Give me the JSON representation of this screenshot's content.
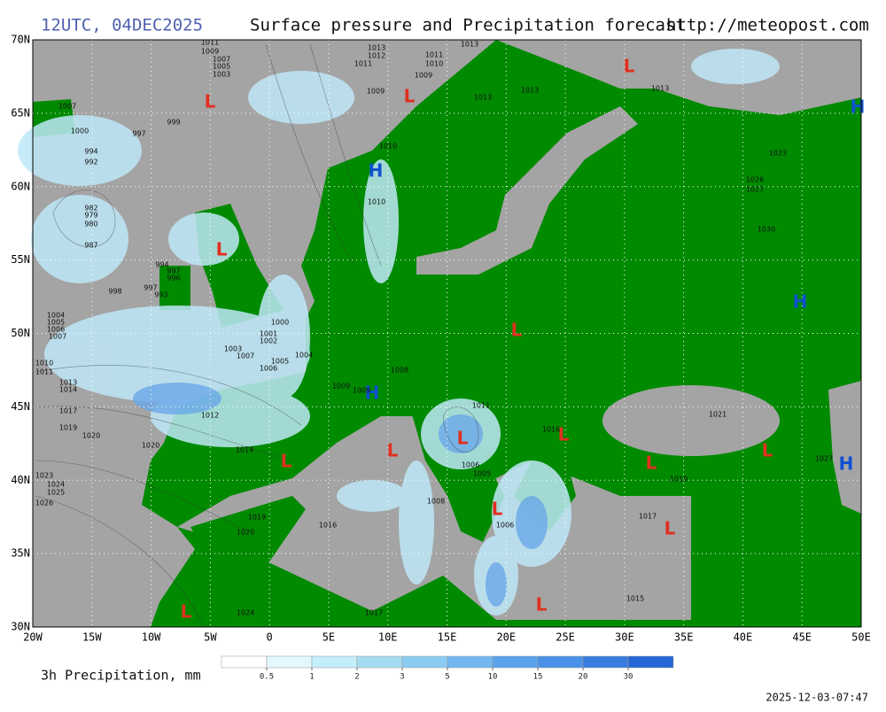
{
  "header": {
    "time": "12UTC, 04DEC2025",
    "title": "Surface pressure and Precipitation forecast",
    "url": "http://meteopost.com"
  },
  "map": {
    "lat_ticks": [
      {
        "value": 70,
        "label": "70N"
      },
      {
        "value": 65,
        "label": "65N"
      },
      {
        "value": 60,
        "label": "60N"
      },
      {
        "value": 55,
        "label": "55N"
      },
      {
        "value": 50,
        "label": "50N"
      },
      {
        "value": 45,
        "label": "45N"
      },
      {
        "value": 40,
        "label": "40N"
      },
      {
        "value": 35,
        "label": "35N"
      },
      {
        "value": 30,
        "label": "30N"
      }
    ],
    "lon_ticks": [
      {
        "value": -20,
        "label": "20W"
      },
      {
        "value": -15,
        "label": "15W"
      },
      {
        "value": -10,
        "label": "10W"
      },
      {
        "value": -5,
        "label": "5W"
      },
      0,
      {
        "value": 5,
        "label": "5E"
      },
      {
        "value": 10,
        "label": "10E"
      },
      {
        "value": 15,
        "label": "15E"
      },
      {
        "value": 20,
        "label": "20E"
      },
      {
        "value": 25,
        "label": "25E"
      },
      {
        "value": 30,
        "label": "30E"
      },
      {
        "value": 35,
        "label": "35E"
      },
      {
        "value": 40,
        "label": "40E"
      },
      {
        "value": 45,
        "label": "45E"
      },
      {
        "value": 50,
        "label": "50E"
      }
    ],
    "low_centers": [
      "L",
      "L",
      "L",
      "L",
      "L",
      "L",
      "L",
      "L",
      "L",
      "L",
      "L",
      "L",
      "L",
      "L",
      "L"
    ],
    "high_centers": [
      "H",
      "H",
      "H",
      "H",
      "H"
    ],
    "isobar_labels": [
      1011,
      1009,
      1007,
      1005,
      1003,
      1013,
      1012,
      1011,
      1013,
      1011,
      1010,
      1009,
      1009,
      1013,
      1013,
      1013,
      1007,
      999,
      1000,
      997,
      994,
      992,
      1010,
      1023,
      1026,
      1027,
      1010,
      982,
      979,
      980,
      987,
      1030,
      994,
      997,
      996,
      998,
      997,
      993,
      1004,
      1005,
      1006,
      1007,
      1000,
      1001,
      1002,
      1003,
      1004,
      1005,
      1006,
      1007,
      1010,
      1011,
      1008,
      1013,
      1014,
      1009,
      1009,
      1011,
      1017,
      1021,
      1012,
      1016,
      1019,
      1020,
      1020,
      1014,
      1027,
      1006,
      1005,
      1023,
      1024,
      1025,
      1008,
      1017,
      1019,
      1026,
      1019,
      1016,
      1006,
      1020,
      1015,
      1017,
      1024
    ]
  },
  "legend": {
    "title": "3h Precipitation, mm",
    "colors": [
      "#ffffff",
      "#e2f8fe",
      "#c4eefa",
      "#a6dcf2",
      "#8ccbf2",
      "#72b7f0",
      "#5aa3ec",
      "#4a92e8",
      "#397ce0",
      "#2466d4"
    ],
    "ticks": [
      0.5,
      1,
      2,
      3,
      5,
      10,
      15,
      20,
      30
    ]
  },
  "timestamp": "2025-12-03-07:47"
}
